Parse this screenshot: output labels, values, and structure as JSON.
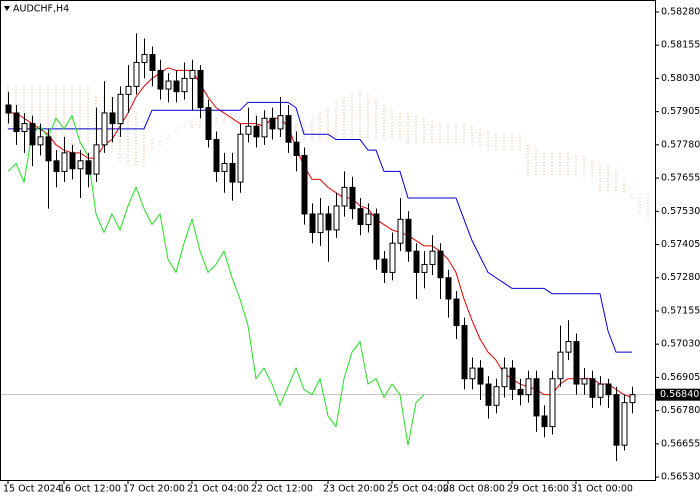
{
  "chart_data": {
    "type": "candlestick",
    "title": "AUDCHF,H4",
    "categories": [
      "15 Oct 2024",
      null,
      null,
      null,
      null,
      null,
      null,
      "16 Oct 12:00",
      null,
      null,
      null,
      null,
      null,
      null,
      null,
      "17 Oct 20:00",
      null,
      null,
      null,
      null,
      null,
      null,
      null,
      "21 Oct 04:00",
      null,
      null,
      null,
      null,
      null,
      null,
      null,
      "22 Oct 12:00",
      null,
      null,
      null,
      null,
      null,
      null,
      null,
      null,
      "23 Oct 20:00",
      null,
      null,
      null,
      null,
      null,
      null,
      null,
      "25 Oct 04:00",
      null,
      null,
      null,
      null,
      null,
      null,
      "28 Oct 08:00",
      null,
      null,
      null,
      null,
      null,
      null,
      null,
      "29 Oct 16:00",
      null,
      null,
      null,
      null,
      null,
      null,
      null,
      "31 Oct 00:00",
      null,
      null,
      null,
      null,
      null,
      null,
      null,
      null,
      null
    ],
    "open": [
      0.5793,
      0.579,
      0.5783,
      0.5786,
      0.5778,
      0.5781,
      0.5772,
      0.5768,
      0.5775,
      0.5769,
      0.5772,
      0.5767,
      0.5778,
      0.579,
      0.5786,
      0.5797,
      0.58,
      0.5809,
      0.5812,
      0.5806,
      0.5799,
      0.5802,
      0.5798,
      0.5803,
      0.5806,
      0.5792,
      0.578,
      0.5768,
      0.5771,
      0.5764,
      0.5782,
      0.5785,
      0.5781,
      0.5788,
      0.5784,
      0.5789,
      0.5779,
      0.5774,
      0.5752,
      0.5745,
      0.5752,
      0.5746,
      0.5755,
      0.5762,
      0.5754,
      0.5748,
      0.5752,
      0.5735,
      0.573,
      0.5741,
      0.575,
      0.5738,
      0.573,
      0.5733,
      0.5738,
      0.5728,
      0.572,
      0.571,
      0.569,
      0.5694,
      0.5688,
      0.568,
      0.5687,
      0.5694,
      0.5686,
      0.5684,
      0.569,
      0.5676,
      0.5672,
      0.569,
      0.57,
      0.5704,
      0.5688,
      0.569,
      0.5683,
      0.5688,
      0.5684,
      0.5665,
      0.5681,
      null,
      null
    ],
    "high": [
      0.5798,
      0.5793,
      0.579,
      0.5789,
      0.5786,
      0.5784,
      0.5776,
      0.5781,
      0.5778,
      0.5776,
      0.5775,
      0.5792,
      0.5802,
      0.5796,
      0.58,
      0.5808,
      0.582,
      0.5818,
      0.5815,
      0.581,
      0.5805,
      0.5806,
      0.5809,
      0.581,
      0.5808,
      0.5795,
      0.5783,
      0.5775,
      0.5775,
      0.5786,
      0.5792,
      0.5789,
      0.5791,
      0.5792,
      0.5796,
      0.5793,
      0.5783,
      0.5777,
      0.5756,
      0.5758,
      0.5755,
      0.576,
      0.5768,
      0.5766,
      0.5758,
      0.5756,
      0.5754,
      0.5738,
      0.5745,
      0.5758,
      0.5753,
      0.5741,
      0.5738,
      0.5744,
      0.5741,
      0.5731,
      0.5723,
      0.5713,
      0.5698,
      0.5697,
      0.5691,
      0.569,
      0.5698,
      0.5697,
      0.569,
      0.5693,
      0.5693,
      0.568,
      0.5693,
      0.571,
      0.5712,
      0.5707,
      0.5694,
      0.5693,
      0.5691,
      0.569,
      0.5687,
      0.5684,
      0.5687,
      null,
      null
    ],
    "low": [
      0.5786,
      0.5778,
      0.5775,
      0.577,
      0.5774,
      0.5754,
      0.5762,
      0.5764,
      0.5765,
      0.5758,
      0.5762,
      0.5764,
      0.5775,
      0.5779,
      0.5781,
      0.579,
      0.5797,
      0.5803,
      0.58,
      0.5795,
      0.5794,
      0.5794,
      0.5795,
      0.5791,
      0.5788,
      0.5777,
      0.5764,
      0.576,
      0.5757,
      0.576,
      0.5779,
      0.5777,
      0.5778,
      0.578,
      0.5781,
      0.5775,
      0.5768,
      0.5748,
      0.5741,
      0.574,
      0.5734,
      0.5743,
      0.5751,
      0.575,
      0.5744,
      0.5745,
      0.5731,
      0.5726,
      0.5727,
      0.5738,
      0.5734,
      0.572,
      0.5724,
      0.5729,
      0.572,
      0.5713,
      0.5705,
      0.5686,
      0.5686,
      0.5682,
      0.5675,
      0.5677,
      0.5683,
      0.5682,
      0.568,
      0.5681,
      0.567,
      0.5668,
      0.5669,
      0.5687,
      0.5697,
      0.5684,
      0.5684,
      0.5679,
      0.568,
      0.5679,
      0.5659,
      0.5663,
      0.5677,
      null,
      null
    ],
    "close": [
      0.579,
      0.5783,
      0.5786,
      0.5778,
      0.5781,
      0.5772,
      0.5768,
      0.5775,
      0.5769,
      0.5772,
      0.5767,
      0.5778,
      0.579,
      0.5786,
      0.5797,
      0.58,
      0.5809,
      0.5812,
      0.5806,
      0.5799,
      0.5802,
      0.5798,
      0.5803,
      0.5806,
      0.5792,
      0.578,
      0.5768,
      0.5771,
      0.5764,
      0.5782,
      0.5785,
      0.5781,
      0.5788,
      0.5784,
      0.5789,
      0.5779,
      0.5774,
      0.5752,
      0.5745,
      0.5752,
      0.5746,
      0.5755,
      0.5762,
      0.5754,
      0.5748,
      0.5752,
      0.5735,
      0.573,
      0.5741,
      0.575,
      0.5738,
      0.573,
      0.5733,
      0.5738,
      0.5728,
      0.572,
      0.571,
      0.569,
      0.5694,
      0.5688,
      0.568,
      0.5687,
      0.5694,
      0.5686,
      0.5684,
      0.569,
      0.5676,
      0.5672,
      0.569,
      0.57,
      0.5704,
      0.5688,
      0.569,
      0.5683,
      0.5688,
      0.5684,
      0.5665,
      0.5681,
      0.5684,
      null,
      null
    ],
    "bull_color": "#ffffff",
    "bear_color": "#000000",
    "lines": [
      {
        "color": "#e00000",
        "values": [
          0.579,
          0.579,
          0.5788,
          0.5786,
          0.5784,
          0.5782,
          0.5778,
          0.5776,
          0.5775,
          0.5775,
          0.5773,
          0.5773,
          0.5778,
          0.578,
          0.5785,
          0.579,
          0.5796,
          0.58,
          0.5803,
          0.5805,
          0.5807,
          0.5806,
          0.5806,
          0.5806,
          0.5801,
          0.5796,
          0.5792,
          0.579,
          0.5788,
          0.5786,
          0.5786,
          0.5786,
          0.5785,
          0.5788,
          0.5788,
          0.5785,
          0.5777,
          0.577,
          0.5765,
          0.5765,
          0.5762,
          0.576,
          0.5758,
          0.5758,
          0.5755,
          0.5754,
          0.575,
          0.5748,
          0.5746,
          0.5745,
          0.5744,
          0.5742,
          0.574,
          0.574,
          0.5738,
          0.5735,
          0.573,
          0.572,
          0.5712,
          0.5705,
          0.57,
          0.5697,
          0.5692,
          0.569,
          0.5688,
          0.5687,
          0.5686,
          0.5684,
          0.5684,
          0.5688,
          0.569,
          0.569,
          0.569,
          0.569,
          0.5688,
          0.5688,
          0.5686,
          0.5684,
          0.5683,
          null,
          null
        ]
      },
      {
        "color": "#0000cc",
        "values": [
          0.5784,
          0.5784,
          0.5784,
          0.5784,
          0.5784,
          0.5784,
          0.5784,
          0.5784,
          0.5784,
          0.5784,
          0.5784,
          0.5784,
          0.5784,
          0.5784,
          0.5784,
          0.5784,
          0.5784,
          0.5784,
          0.5791,
          0.5791,
          0.5791,
          0.5791,
          0.5791,
          0.5791,
          0.5791,
          0.5791,
          0.5791,
          0.5791,
          0.5791,
          0.5791,
          0.5794,
          0.5794,
          0.5794,
          0.5794,
          0.5794,
          0.5794,
          0.5792,
          0.5782,
          0.5782,
          0.5782,
          0.5782,
          0.578,
          0.578,
          0.578,
          0.578,
          0.5776,
          0.5776,
          0.5768,
          0.5768,
          0.5768,
          0.5758,
          0.5758,
          0.5758,
          0.5758,
          0.5758,
          0.5758,
          0.5758,
          0.575,
          0.5742,
          0.5736,
          0.573,
          0.5728,
          0.5726,
          0.5724,
          0.5724,
          0.5724,
          0.5724,
          0.5724,
          0.5722,
          0.5722,
          0.5722,
          0.5722,
          0.5722,
          0.5722,
          0.5722,
          0.5708,
          0.57,
          0.57,
          0.57,
          null,
          null
        ]
      },
      {
        "color": "#22dd22",
        "values": [
          0.5768,
          0.5771,
          0.5764,
          0.5782,
          0.5785,
          0.5781,
          0.5788,
          0.5784,
          0.5789,
          0.5779,
          0.5774,
          0.5752,
          0.5745,
          0.5752,
          0.5746,
          0.5755,
          0.5762,
          0.5754,
          0.5748,
          0.5752,
          0.5735,
          0.573,
          0.5741,
          0.575,
          0.5738,
          0.573,
          0.5733,
          0.5738,
          0.5728,
          0.572,
          0.571,
          0.569,
          0.5694,
          0.5688,
          0.568,
          0.5687,
          0.5694,
          0.5686,
          0.5684,
          0.569,
          0.5676,
          0.5672,
          0.569,
          0.57,
          0.5704,
          0.5688,
          0.569,
          0.5683,
          0.5688,
          0.5684,
          0.5665,
          0.5681,
          0.5684,
          null,
          null,
          null,
          null,
          null,
          null,
          null,
          null,
          null,
          null,
          null,
          null,
          null,
          null,
          null,
          null,
          null,
          null,
          null,
          null,
          null,
          null,
          null,
          null,
          null,
          null,
          null,
          null
        ]
      }
    ],
    "cloud": {
      "color_up": "#f4a460",
      "color_down": "#c0c0c0",
      "span_a": [
        0.58,
        0.58,
        0.58,
        0.58,
        0.58,
        0.58,
        0.58,
        0.58,
        0.58,
        0.58,
        0.58,
        0.5796,
        0.5796,
        0.5796,
        0.5796,
        0.5796,
        0.579,
        0.5785,
        0.578,
        0.5778,
        0.578,
        0.5783,
        0.5785,
        0.5787,
        0.5788,
        0.5788,
        0.5788,
        0.5788,
        0.5788,
        0.5788,
        0.5788,
        0.579,
        0.5789,
        0.5788,
        0.5787,
        0.5786,
        0.5786,
        0.5786,
        0.5788,
        0.579,
        0.5792,
        0.5794,
        0.5796,
        0.5797,
        0.5798,
        0.5797,
        0.5795,
        0.5793,
        0.5791,
        0.579,
        0.579,
        0.5789,
        0.5788,
        0.5787,
        0.5786,
        0.5786,
        0.5786,
        0.5786,
        0.5785,
        0.5784,
        0.5783,
        0.5782,
        0.5782,
        0.5782,
        0.5782,
        0.5778,
        0.5776,
        0.5775,
        0.5775,
        0.5775,
        0.5775,
        0.5774,
        0.5774,
        0.5772,
        0.577,
        0.577,
        0.5768,
        0.5764,
        0.5758,
        0.5752,
        0.575
      ],
      "span_b": [
        0.5784,
        0.5784,
        0.5782,
        0.578,
        0.578,
        0.5778,
        0.5778,
        0.5778,
        0.5778,
        0.5778,
        0.5778,
        0.5778,
        0.5778,
        0.5776,
        0.5772,
        0.577,
        0.577,
        0.577,
        0.5776,
        0.578,
        0.5782,
        0.5784,
        0.5784,
        0.5784,
        0.5784,
        0.5786,
        0.5786,
        0.5786,
        0.5786,
        0.5788,
        0.5788,
        0.5784,
        0.5782,
        0.578,
        0.578,
        0.5779,
        0.5779,
        0.5779,
        0.5779,
        0.5779,
        0.578,
        0.578,
        0.578,
        0.578,
        0.578,
        0.578,
        0.578,
        0.578,
        0.578,
        0.578,
        0.5778,
        0.5778,
        0.5778,
        0.5778,
        0.5778,
        0.5778,
        0.5778,
        0.5778,
        0.5778,
        0.5778,
        0.5776,
        0.5776,
        0.5776,
        0.5776,
        0.5776,
        0.5766,
        0.5766,
        0.5766,
        0.5766,
        0.5766,
        0.5766,
        0.5766,
        0.5766,
        0.5766,
        0.576,
        0.576,
        0.576,
        0.576,
        0.576,
        0.576,
        0.576
      ]
    },
    "current_price": {
      "value": 0.5684,
      "label": "0.56840"
    },
    "ylim": [
      0.56519,
      0.58325
    ],
    "yticks": [
      {
        "value": 0.5828,
        "label": "0.58280"
      },
      {
        "value": 0.58155,
        "label": "0.58155"
      },
      {
        "value": 0.5803,
        "label": "0.58030"
      },
      {
        "value": 0.57905,
        "label": "0.57905"
      },
      {
        "value": 0.5778,
        "label": "0.57780"
      },
      {
        "value": 0.57655,
        "label": "0.57655"
      },
      {
        "value": 0.5753,
        "label": "0.57530"
      },
      {
        "value": 0.57405,
        "label": "0.57405"
      },
      {
        "value": 0.5728,
        "label": "0.57280"
      },
      {
        "value": 0.57155,
        "label": "0.57155"
      },
      {
        "value": 0.5703,
        "label": "0.57030"
      },
      {
        "value": 0.56905,
        "label": "0.56905"
      },
      {
        "value": 0.5678,
        "label": "0.56780"
      },
      {
        "value": 0.56655,
        "label": "0.56655"
      },
      {
        "value": 0.5653,
        "label": "0.56530"
      }
    ]
  }
}
